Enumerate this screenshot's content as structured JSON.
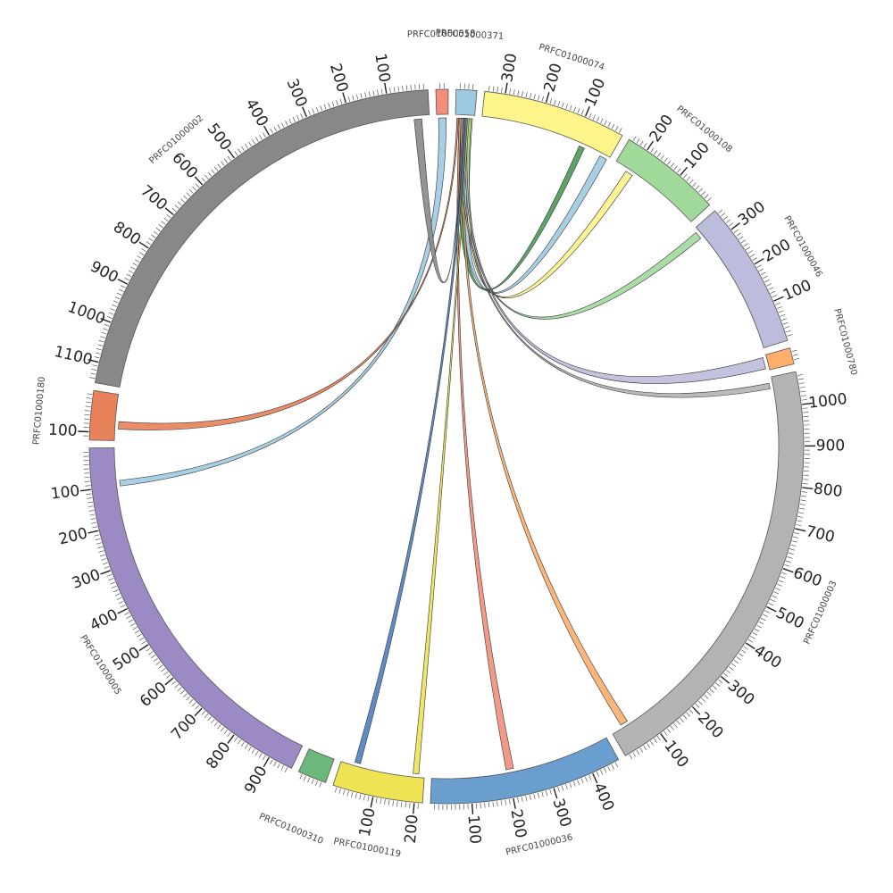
{
  "chart_data": {
    "type": "chord",
    "contigs": [
      {
        "name": "PRFC01000558",
        "length": 30,
        "color": "#f28e7a",
        "ticks": []
      },
      {
        "name": "PRFC01000371",
        "length": 50,
        "color": "#9ecae1",
        "ticks": []
      },
      {
        "name": "PRFC01000074",
        "length": 350,
        "color": "#fdf48a",
        "ticks": [
          100,
          200,
          300
        ]
      },
      {
        "name": "PRFC01000108",
        "length": 250,
        "color": "#a1d99b",
        "ticks": [
          100,
          200
        ]
      },
      {
        "name": "PRFC01000046",
        "length": 360,
        "color": "#bcbddc",
        "ticks": [
          100,
          200,
          300
        ]
      },
      {
        "name": "PRFC01000780",
        "length": 40,
        "color": "#fdae6b",
        "ticks": []
      },
      {
        "name": "PRFC01000003",
        "length": 1080,
        "color": "#b3b3b3",
        "ticks": [
          100,
          200,
          300,
          400,
          500,
          600,
          700,
          800,
          900,
          1000
        ]
      },
      {
        "name": "PRFC01000036",
        "length": 470,
        "color": "#6a9ecf",
        "ticks": [
          100,
          200,
          300,
          400
        ]
      },
      {
        "name": "PRFC01000119",
        "length": 220,
        "color": "#ede353",
        "ticks": [
          100,
          200
        ]
      },
      {
        "name": "PRFC01000310",
        "length": 70,
        "color": "#6cb77c",
        "ticks": []
      },
      {
        "name": "PRFC01000005",
        "length": 960,
        "color": "#9b8ac4",
        "ticks": [
          100,
          200,
          300,
          400,
          500,
          600,
          700,
          800,
          900
        ]
      },
      {
        "name": "PRFC01000180",
        "length": 120,
        "color": "#e8825a",
        "ticks": [
          100
        ]
      },
      {
        "name": "PRFC01000002",
        "length": 1150,
        "color": "#888888",
        "ticks": [
          100,
          200,
          300,
          400,
          500,
          600,
          700,
          800,
          900,
          1000,
          1100
        ]
      }
    ],
    "links": [
      {
        "source": "PRFC01000558",
        "source_range": [
          5,
          25
        ],
        "target": "PRFC01000005",
        "target_range": [
          85,
          100
        ],
        "color": "#9ecae1"
      },
      {
        "source": "PRFC01000371",
        "source_range": [
          10,
          30
        ],
        "target": "PRFC01000074",
        "target_range": [
          5,
          25
        ],
        "color": "#9ecae1"
      },
      {
        "source": "PRFC01000371",
        "source_range": [
          20,
          40
        ],
        "target": "PRFC01000074",
        "target_range": [
          70,
          85
        ],
        "color": "#4a9a55"
      },
      {
        "source": "PRFC01000371",
        "source_range": [
          5,
          15
        ],
        "target": "PRFC01000108",
        "target_range": [
          195,
          215
        ],
        "color": "#fdf48a"
      },
      {
        "source": "PRFC01000371",
        "source_range": [
          8,
          16
        ],
        "target": "PRFC01000046",
        "target_range": [
          330,
          350
        ],
        "color": "#a1d99b"
      },
      {
        "source": "PRFC01000371",
        "source_range": [
          16,
          22
        ],
        "target": "PRFC01000780",
        "target_range": [
          5,
          35
        ],
        "color": "#bcbddc"
      },
      {
        "source": "PRFC01000371",
        "source_range": [
          22,
          28
        ],
        "target": "PRFC01000003",
        "target_range": [
          30,
          50
        ],
        "color": "#fdae6b"
      },
      {
        "source": "PRFC01000371",
        "source_range": [
          30,
          35
        ],
        "target": "PRFC01000003",
        "target_range": [
          1050,
          1065
        ],
        "color": "#b3b3b3"
      },
      {
        "source": "PRFC01000371",
        "source_range": [
          35,
          40
        ],
        "target": "PRFC01000036",
        "target_range": [
          195,
          215
        ],
        "color": "#f28e7a"
      },
      {
        "source": "PRFC01000371",
        "source_range": [
          18,
          24
        ],
        "target": "PRFC01000119",
        "target_range": [
          35,
          50
        ],
        "color": "#4f7fbf"
      },
      {
        "source": "PRFC01000371",
        "source_range": [
          14,
          18
        ],
        "target": "PRFC01000119",
        "target_range": [
          190,
          205
        ],
        "color": "#ede353"
      },
      {
        "source": "PRFC01000371",
        "source_range": [
          42,
          46
        ],
        "target": "PRFC01000180",
        "target_range": [
          70,
          90
        ],
        "color": "#e8825a"
      },
      {
        "source": "PRFC01000371",
        "source_range": [
          26,
          30
        ],
        "target": "PRFC01000002",
        "target_range": [
          20,
          40
        ],
        "color": "#888888"
      }
    ]
  }
}
